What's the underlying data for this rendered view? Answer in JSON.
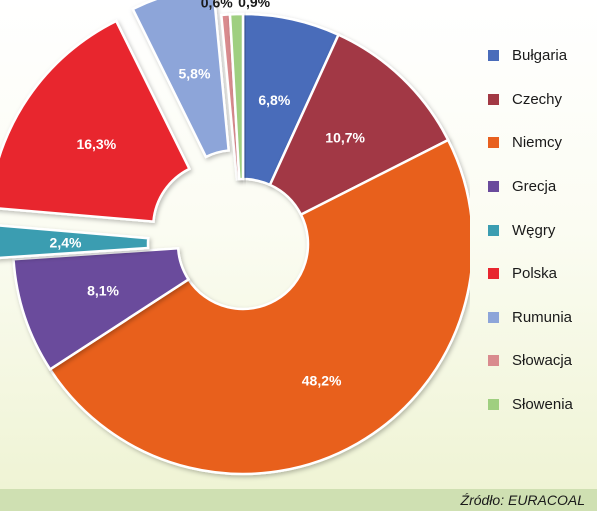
{
  "chart_data": {
    "type": "pie",
    "donut": true,
    "categories": [
      "Bułgaria",
      "Czechy",
      "Niemcy",
      "Grecja",
      "Węgry",
      "Polska",
      "Rumunia",
      "Słowacja",
      "Słowenia"
    ],
    "values": [
      6.8,
      10.7,
      48.2,
      8.1,
      2.4,
      16.3,
      5.8,
      0.6,
      0.9
    ],
    "labels": [
      "6,8%",
      "10,7%",
      "48,2%",
      "8,1%",
      "2,4%",
      "16,3%",
      "5,8%",
      "0,6%",
      "0,9%"
    ],
    "colors": [
      "#4a6cba",
      "#a23944",
      "#e8601f",
      "#6a4b9c",
      "#3b9db1",
      "#e8262f",
      "#8da5d9",
      "#d98b8e",
      "#9fcf80"
    ],
    "exploded": [
      "Węgry",
      "Polska",
      "Rumunia"
    ],
    "legend_position": "right"
  },
  "source": "Źródło: EURACOAL"
}
